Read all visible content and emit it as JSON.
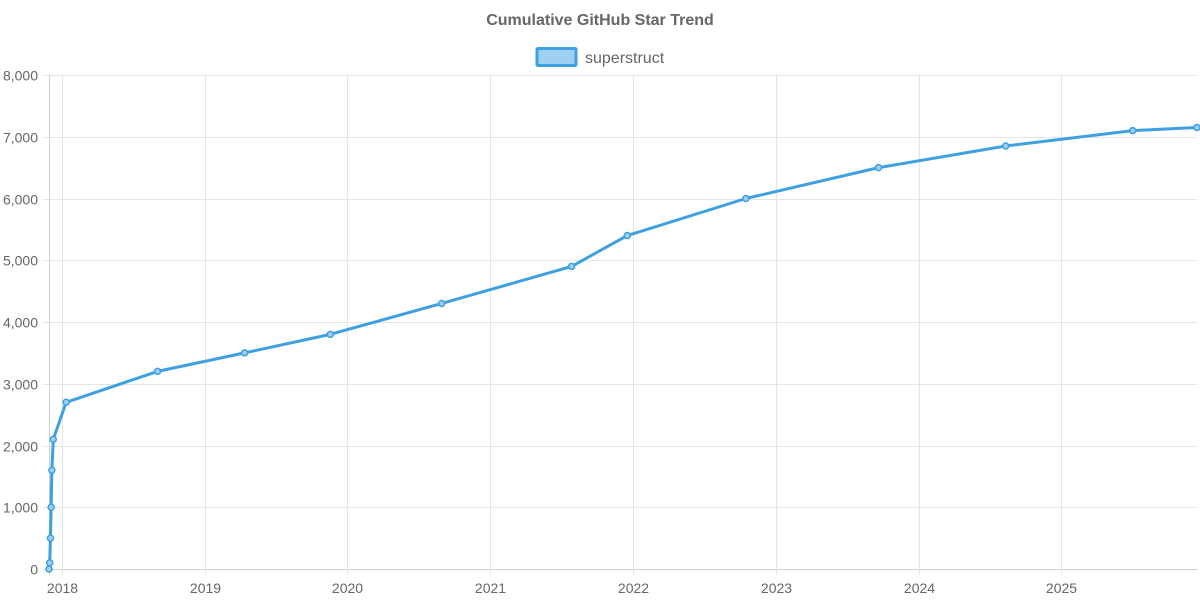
{
  "chart_data": {
    "type": "line",
    "title": "Cumulative GitHub Star Trend",
    "xlabel": "",
    "ylabel": "",
    "grid": true,
    "legend_position": "top-center",
    "ylim": [
      0,
      8000
    ],
    "y_ticks": [
      0,
      1000,
      2000,
      3000,
      4000,
      5000,
      6000,
      7000,
      8000
    ],
    "y_tick_labels": [
      "0",
      "1,000",
      "2,000",
      "3,000",
      "4,000",
      "5,000",
      "6,000",
      "7,000",
      "8,000"
    ],
    "xlim": [
      2017.91,
      2025.95
    ],
    "x_ticks": [
      2018,
      2019,
      2020,
      2021,
      2022,
      2023,
      2024,
      2025
    ],
    "x_tick_labels": [
      "2018",
      "2019",
      "2020",
      "2021",
      "2022",
      "2023",
      "2024",
      "2025"
    ],
    "series": [
      {
        "name": "superstruct",
        "color": "#3ea0e0",
        "fill": "#9fd0f2",
        "x": [
          2017.91,
          2017.915,
          2017.92,
          2017.925,
          2017.93,
          2017.94,
          2018.03,
          2018.67,
          2019.28,
          2019.88,
          2020.66,
          2021.57,
          2021.96,
          2022.79,
          2023.72,
          2024.61,
          2025.5,
          2025.95
        ],
        "values": [
          0,
          100,
          500,
          1000,
          1600,
          2100,
          2700,
          3200,
          3500,
          3800,
          4300,
          4900,
          5400,
          6000,
          6500,
          6850,
          7100,
          7150
        ]
      }
    ]
  }
}
